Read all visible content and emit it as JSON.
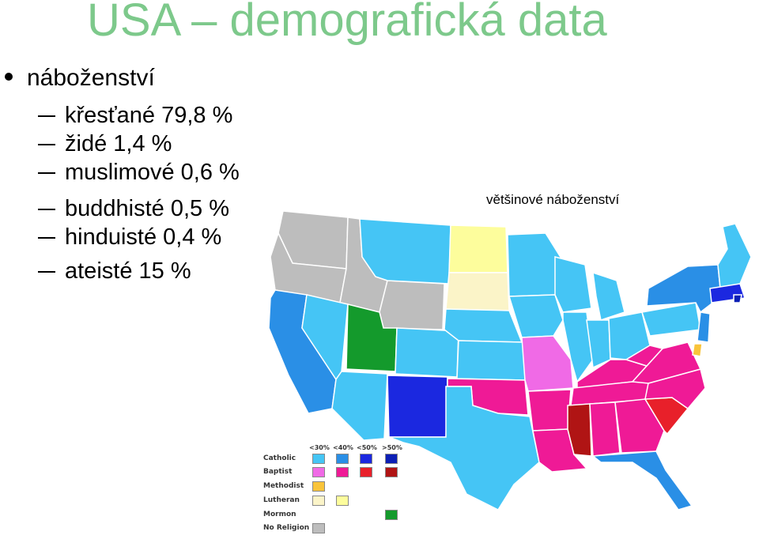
{
  "slide": {
    "title": "USA – demografická data",
    "main_bullet": "náboženství",
    "items": [
      "křesťané 79,8 %",
      "židé 1,4 %",
      "muslimové 0,6 %",
      "buddhisté 0,5 %",
      "hinduisté 0,4 %",
      "ateisté 15 %"
    ],
    "map_caption": "většinové náboženství"
  },
  "legend": {
    "thresholds": [
      "<30%",
      "<40%",
      "<50%",
      ">50%"
    ],
    "rows": [
      {
        "label": "Catholic",
        "swatches": [
          "#45c5f5",
          "#2a8fe6",
          "#1b28e0",
          "#0c1fb5"
        ]
      },
      {
        "label": "Baptist",
        "swatches": [
          "#f06ae6",
          "#ef1a96",
          "#e8202a",
          "#b01414"
        ]
      },
      {
        "label": "Methodist",
        "swatches": [
          "#f9c43a"
        ]
      },
      {
        "label": "Lutheran",
        "swatches": [
          "#fbf4c8",
          "#fdfd9c"
        ]
      },
      {
        "label": "Mormon",
        "swatches": [
          "",
          "",
          "",
          "#149a2c"
        ]
      },
      {
        "label": "No Religion",
        "swatches": [
          "#bdbdbd"
        ]
      }
    ]
  },
  "colors": {
    "title": "#7dc98b",
    "catholic_lt30": "#45c5f5",
    "catholic_lt40": "#2a8fe6",
    "catholic_lt50": "#1b28e0",
    "catholic_gt50": "#0c1fb5",
    "baptist_lt30": "#f06ae6",
    "baptist_lt40": "#ef1a96",
    "baptist_lt50": "#e8202a",
    "baptist_gt50": "#b01414",
    "methodist": "#f9c43a",
    "lutheran_lt30": "#fbf4c8",
    "lutheran_lt40": "#fdfd9c",
    "mormon": "#149a2c",
    "no_religion": "#bdbdbd"
  }
}
